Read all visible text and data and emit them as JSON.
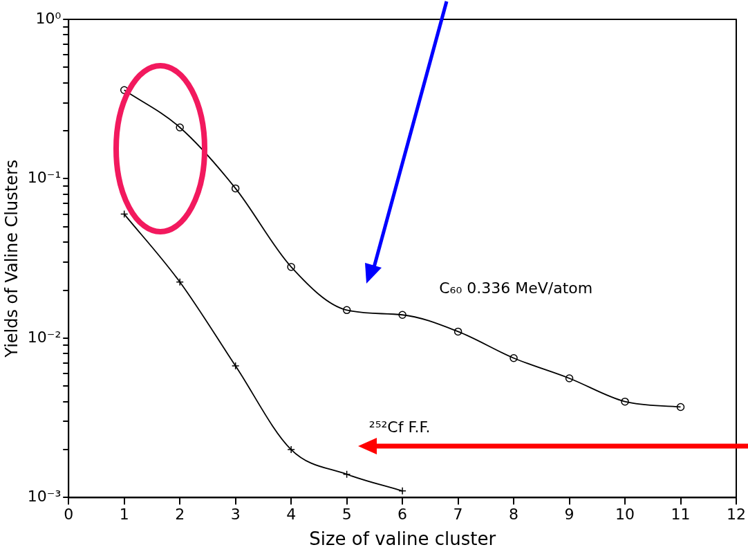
{
  "chart_data": {
    "type": "line",
    "xlabel": "Size of valine cluster",
    "ylabel": "Yields of Valine Clusters",
    "series": [
      {
        "color": "#000000",
        "marker": "circle",
        "x": [
          1,
          2,
          3,
          4,
          5,
          6,
          7,
          8,
          9,
          10,
          11
        ],
        "values": [
          0.36,
          0.21,
          0.087,
          0.028,
          0.015,
          0.014,
          0.011,
          0.0075,
          0.0056,
          0.004,
          0.0037
        ]
      },
      {
        "color": "#000000",
        "marker": "cross",
        "x": [
          1,
          2,
          3,
          4,
          5,
          6
        ],
        "values": [
          0.06,
          0.0225,
          0.0067,
          0.002,
          0.0014,
          0.0011
        ]
      }
    ],
    "annotations": [
      "C₆₀ 0.336 MeV/atom",
      "²⁵²Cf F.F."
    ],
    "log": "y",
    "xlim": [
      0,
      12
    ],
    "xticks": [
      0,
      1,
      2,
      3,
      4,
      5,
      6,
      7,
      8,
      9,
      10,
      11,
      12
    ],
    "ylim": [
      0.001,
      1
    ],
    "yticks": [
      {
        "value": 0.001,
        "label": "10⁻³"
      },
      {
        "value": 0.002,
        "label": null
      },
      {
        "value": 0.003,
        "label": null
      },
      {
        "value": 0.004,
        "label": null
      },
      {
        "value": 0.005,
        "label": null
      },
      {
        "value": 0.006,
        "label": null
      },
      {
        "value": 0.007,
        "label": null
      },
      {
        "value": 0.008,
        "label": null
      },
      {
        "value": 0.009,
        "label": null
      },
      {
        "value": 0.01,
        "label": "10⁻²"
      },
      {
        "value": 0.02,
        "label": null
      },
      {
        "value": 0.03,
        "label": null
      },
      {
        "value": 0.04,
        "label": null
      },
      {
        "value": 0.05,
        "label": null
      },
      {
        "value": 0.06,
        "label": null
      },
      {
        "value": 0.07,
        "label": null
      },
      {
        "value": 0.08,
        "label": null
      },
      {
        "value": 0.09,
        "label": null
      },
      {
        "value": 0.1,
        "label": "10⁻¹"
      },
      {
        "value": 0.2,
        "label": null
      },
      {
        "value": 0.3,
        "label": null
      },
      {
        "value": 0.4,
        "label": null
      },
      {
        "value": 0.5,
        "label": null
      },
      {
        "value": 0.6,
        "label": null
      },
      {
        "value": 0.7,
        "label": null
      },
      {
        "value": 0.8,
        "label": null
      },
      {
        "value": 0.9,
        "label": null
      },
      {
        "value": 1,
        "label": "10⁰"
      }
    ],
    "grid": false,
    "legend": false
  }
}
